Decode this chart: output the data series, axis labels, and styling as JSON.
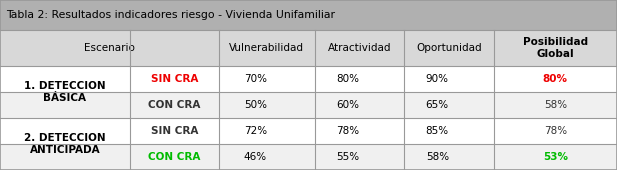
{
  "title": "Tabla 2: Resultados indicadores riesgo - Vivienda Unifamiliar",
  "title_bg": "#b0b0b0",
  "header_bg": "#d8d8d8",
  "row_bgs": [
    "#ffffff",
    "#f0f0f0",
    "#ffffff",
    "#f0f0f0"
  ],
  "outer_bg": "#b8b8b8",
  "border_color": "#999999",
  "figsize": [
    6.17,
    1.7
  ],
  "dpi": 100,
  "title_fontsize": 7.8,
  "header_fontsize": 7.5,
  "data_fontsize": 7.5,
  "group_fontsize": 7.5,
  "rows": [
    {
      "group": "1. DETECCION\nBÁSICA",
      "sub": "SIN CRA",
      "sub_color": "#ee0000",
      "vuln": "70%",
      "atrac": "80%",
      "opor": "90%",
      "posib": "80%",
      "posib_color": "#ee0000",
      "posib_bold": true
    },
    {
      "group": "",
      "sub": "CON CRA",
      "sub_color": "#333333",
      "vuln": "50%",
      "atrac": "60%",
      "opor": "65%",
      "posib": "58%",
      "posib_color": "#333333",
      "posib_bold": false
    },
    {
      "group": "2. DETECCION\nANTICIPADA",
      "sub": "SIN CRA",
      "sub_color": "#333333",
      "vuln": "72%",
      "atrac": "78%",
      "opor": "85%",
      "posib": "78%",
      "posib_color": "#333333",
      "posib_bold": false
    },
    {
      "group": "",
      "sub": "CON CRA",
      "sub_color": "#00bb00",
      "vuln": "46%",
      "atrac": "55%",
      "opor": "58%",
      "posib": "53%",
      "posib_color": "#00bb00",
      "posib_bold": true
    }
  ]
}
